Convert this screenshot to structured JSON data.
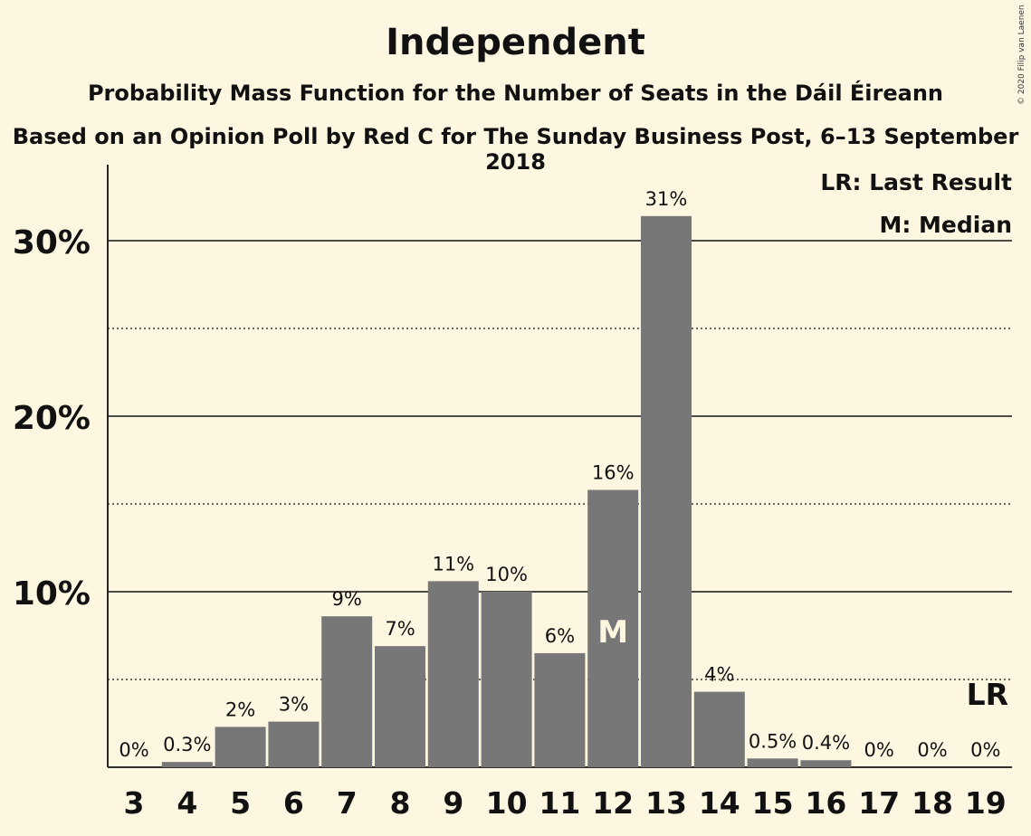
{
  "title": "Independent",
  "subtitle": "Probability Mass Function for the Number of Seats in the Dáil Éireann",
  "source": "Based on an Opinion Poll by Red C for The Sunday Business Post, 6–13 September 2018",
  "copyright": "© 2020 Filip van Laenen",
  "legend": {
    "last_result": "LR: Last Result",
    "median": "M: Median"
  },
  "colors": {
    "background": "#fdf7e1",
    "bar": "#777777",
    "text": "#111111"
  },
  "chart_data": {
    "type": "bar",
    "categories": [
      "3",
      "4",
      "5",
      "6",
      "7",
      "8",
      "9",
      "10",
      "11",
      "12",
      "13",
      "14",
      "15",
      "16",
      "17",
      "18",
      "19"
    ],
    "values": [
      0,
      0.3,
      2.3,
      2.6,
      8.6,
      6.9,
      10.6,
      10.0,
      6.5,
      15.8,
      31.4,
      4.3,
      0.5,
      0.4,
      0,
      0,
      0
    ],
    "data_labels": [
      "0%",
      "0.3%",
      "2%",
      "3%",
      "9%",
      "7%",
      "11%",
      "10%",
      "6%",
      "16%",
      "31%",
      "4%",
      "0.5%",
      "0.4%",
      "0%",
      "0%",
      "0%"
    ],
    "y_ticks": [
      {
        "value": 10,
        "label": "10%"
      },
      {
        "value": 20,
        "label": "20%"
      },
      {
        "value": 30,
        "label": "30%"
      }
    ],
    "minor_grid": [
      5,
      15,
      25
    ],
    "ylim": [
      0,
      34
    ],
    "median_seat": "12",
    "median_label": "M",
    "last_result_seat": "19",
    "last_result_label": "LR",
    "legend_position": "top-right",
    "grid": true
  }
}
